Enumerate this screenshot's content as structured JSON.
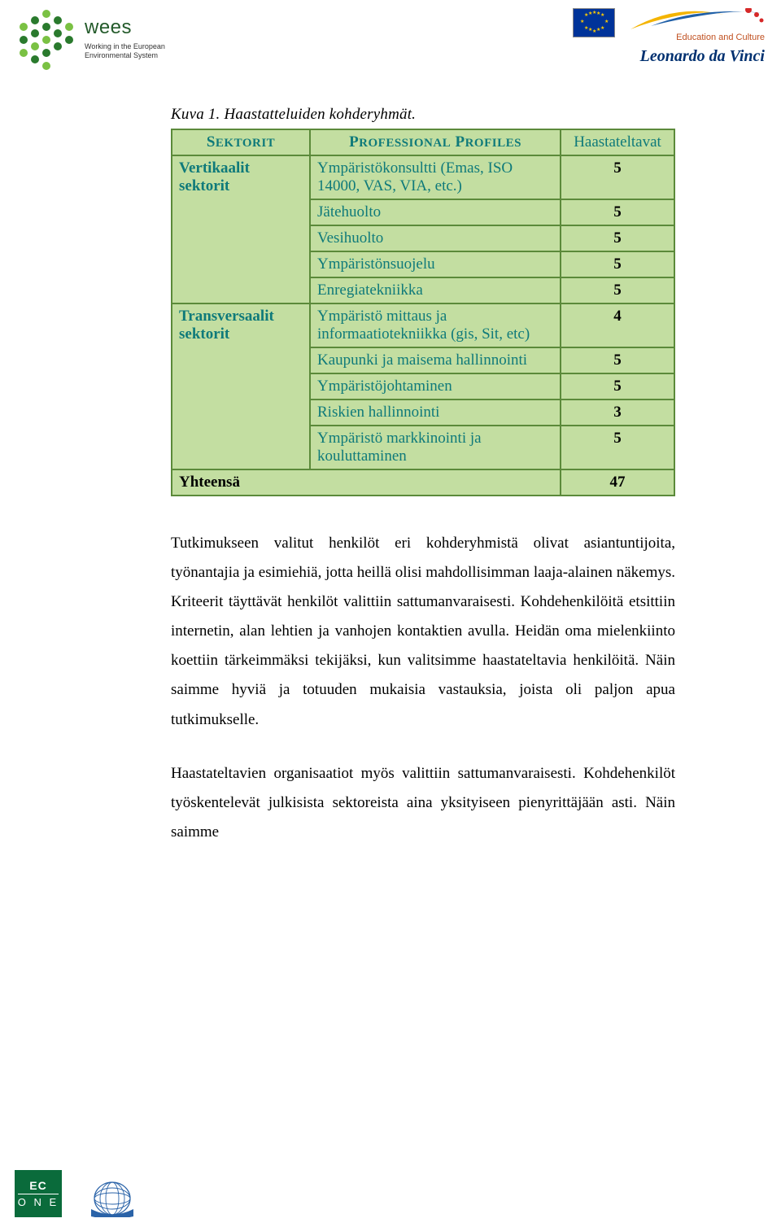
{
  "colors": {
    "table_border": "#5b8a3a",
    "table_fill": "#c3dea1",
    "table_text_teal": "#0f7a7a",
    "table_text_black": "#000000",
    "wees_green_dark": "#2a7a2d",
    "wees_green_light": "#7ac143",
    "eu_blue": "#003399",
    "eu_gold": "#ffcc00",
    "ldv_blue": "#003070",
    "edu_orange": "#c05020",
    "ecoone_green": "#0a6b3b",
    "globe_blue": "#2a63a8"
  },
  "header": {
    "wees_word": "wees",
    "wees_sub_1": "Working in the European",
    "wees_sub_2": "Environmental System",
    "edu_label": "Education and Culture",
    "ldv": "Leonardo da Vinci"
  },
  "caption": "Kuva 1. Haastatteluiden kohderyhmät.",
  "table": {
    "col_sektorit": "SEKTORIT",
    "col_profiles": "PROFESSIONAL PROFILES",
    "col_haast": "Haastateltavat",
    "vert_label": "Vertikaalit sektorit",
    "trans_label": "Transversaalit sektorit",
    "rows_vert": [
      {
        "label": "Ympäristökonsultti (Emas, ISO 14000, VAS, VIA, etc.)",
        "value": "5"
      },
      {
        "label": "Jätehuolto",
        "value": "5"
      },
      {
        "label": "Vesihuolto",
        "value": "5"
      },
      {
        "label": "Ympäristönsuojelu",
        "value": "5"
      },
      {
        "label": "Enregiatekniikka",
        "value": "5"
      }
    ],
    "rows_trans": [
      {
        "label": "Ympäristö mittaus ja informaatiotekniikka (gis, Sit, etc)",
        "value": "4"
      },
      {
        "label": "Kaupunki ja maisema hallinnointi",
        "value": "5"
      },
      {
        "label": "Ympäristöjohtaminen",
        "value": "5"
      },
      {
        "label": "Riskien hallinnointi",
        "value": "3"
      },
      {
        "label": "Ympäristö markkinointi ja kouluttaminen",
        "value": "5"
      }
    ],
    "total_label": "Yhteensä",
    "total_value": "47"
  },
  "paragraphs": {
    "p1": "Tutkimukseen valitut henkilöt eri kohderyhmistä olivat asiantuntijoita, työnantajia ja esimiehiä, jotta heillä olisi mahdollisimman laaja-alainen näkemys. Kriteerit täyttävät henkilöt valittiin sattumanvaraisesti. Kohdehenkilöitä etsittiin internetin, alan lehtien ja vanhojen kontaktien avulla. Heidän oma mielenkiinto koettiin tärkeimmäksi tekijäksi, kun valitsimme haastateltavia henkilöitä. Näin saimme hyviä ja totuuden mukaisia vastauksia, joista oli paljon apua tutkimukselle.",
    "p2": "Haastateltavien organisaatiot myös valittiin sattumanvaraisesti. Kohdehenkilöt työskentelevät julkisista sektoreista aina yksityiseen pienyrittäjään asti. Näin saimme"
  },
  "footer": {
    "ecoone_top": "EC",
    "ecoone_bottom": "O N E"
  }
}
